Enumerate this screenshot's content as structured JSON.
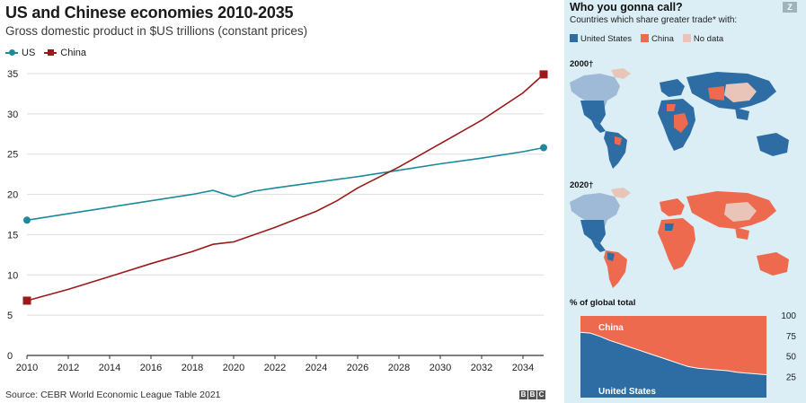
{
  "left_chart": {
    "title": "US and Chinese economies 2010-2035",
    "subtitle": "Gross domestic product in $US trillions (constant prices)",
    "source": "Source: CEBR World Economic League Table 2021",
    "logo": [
      "B",
      "B",
      "C"
    ]
  },
  "right_panel": {
    "title": "Who you gonna call?",
    "subtitle": "Countries which share greater trade* with:",
    "badge": "Z",
    "legend": [
      {
        "label": "United States",
        "color": "#2e6da4"
      },
      {
        "label": "China",
        "color": "#ee6a4f"
      },
      {
        "label": "No data",
        "color": "#e9c4b8"
      }
    ],
    "map_2000_label": "2000†",
    "map_2020_label": "2020†",
    "pct_title": "% of global total",
    "area_labels": {
      "china": "China",
      "us": "United States"
    },
    "area_ticks": [
      "100",
      "75",
      "50",
      "25"
    ]
  },
  "chart_data": [
    {
      "type": "line",
      "title": "US and Chinese economies 2010-2035",
      "subtitle": "Gross domestic product in $US trillions (constant prices)",
      "xlabel": "",
      "ylabel": "",
      "xlim": [
        2010,
        2035
      ],
      "ylim": [
        0,
        35
      ],
      "x_ticks": [
        2010,
        2012,
        2014,
        2016,
        2018,
        2020,
        2022,
        2024,
        2026,
        2028,
        2030,
        2032,
        2034
      ],
      "y_ticks": [
        0,
        5,
        10,
        15,
        20,
        25,
        30,
        35
      ],
      "grid": "horizontal",
      "legend_position": "top-left",
      "series": [
        {
          "name": "US",
          "color": "#1d8a9b",
          "marker": "circle",
          "points": [
            [
              2010,
              16.8
            ],
            [
              2012,
              17.6
            ],
            [
              2014,
              18.4
            ],
            [
              2016,
              19.2
            ],
            [
              2018,
              20.0
            ],
            [
              2019,
              20.5
            ],
            [
              2020,
              19.7
            ],
            [
              2021,
              20.4
            ],
            [
              2022,
              20.8
            ],
            [
              2024,
              21.5
            ],
            [
              2026,
              22.2
            ],
            [
              2028,
              23.0
            ],
            [
              2030,
              23.8
            ],
            [
              2032,
              24.5
            ],
            [
              2034,
              25.3
            ],
            [
              2035,
              25.8
            ]
          ]
        },
        {
          "name": "China",
          "color": "#9b1a1a",
          "marker": "square",
          "points": [
            [
              2010,
              6.8
            ],
            [
              2012,
              8.2
            ],
            [
              2014,
              9.8
            ],
            [
              2016,
              11.4
            ],
            [
              2018,
              12.9
            ],
            [
              2019,
              13.8
            ],
            [
              2020,
              14.1
            ],
            [
              2022,
              15.9
            ],
            [
              2024,
              17.9
            ],
            [
              2025,
              19.2
            ],
            [
              2026,
              20.8
            ],
            [
              2028,
              23.4
            ],
            [
              2030,
              26.3
            ],
            [
              2032,
              29.2
            ],
            [
              2034,
              32.6
            ],
            [
              2035,
              34.9
            ]
          ]
        }
      ]
    },
    {
      "type": "area",
      "title": "% of global total",
      "xlabel": "",
      "ylabel": "",
      "ylim": [
        0,
        100
      ],
      "y_ticks": [
        25,
        50,
        75,
        100
      ],
      "legend_position": "inline",
      "series": [
        {
          "name": "United States",
          "color": "#2e6da4",
          "values": [
            80,
            79,
            75,
            70,
            66,
            62,
            58,
            54,
            50,
            46,
            42,
            38,
            36,
            35,
            34,
            33,
            31,
            30,
            29,
            28
          ]
        },
        {
          "name": "China",
          "color": "#ee6a4f",
          "values": [
            20,
            21,
            25,
            30,
            34,
            38,
            42,
            46,
            50,
            54,
            58,
            62,
            64,
            65,
            66,
            67,
            69,
            70,
            71,
            72
          ]
        }
      ]
    }
  ]
}
